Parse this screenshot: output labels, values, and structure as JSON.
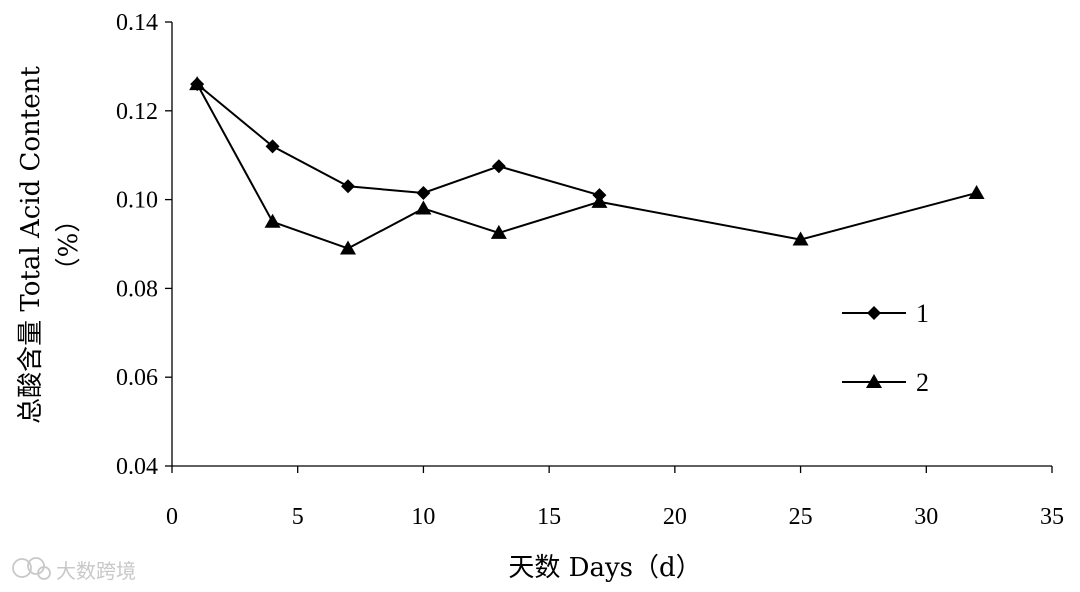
{
  "chart_data": {
    "type": "line",
    "title": "",
    "xlabel": "天数 Days（d）",
    "ylabel": "总酸含量 Total Acid Content",
    "ylabel_unit": "（%）",
    "xlim": [
      0,
      35
    ],
    "ylim": [
      0.04,
      0.14
    ],
    "x_ticks": [
      0,
      5,
      10,
      15,
      20,
      25,
      30,
      35
    ],
    "y_ticks": [
      0.04,
      0.06,
      0.08,
      0.1,
      0.12,
      0.14
    ],
    "y_tick_labels": [
      "0.04",
      "0.06",
      "0.08",
      "0.10",
      "0.12",
      "0.14"
    ],
    "grid": false,
    "legend_position": "right",
    "series": [
      {
        "name": "1",
        "marker": "diamond",
        "x": [
          1,
          4,
          7,
          10,
          13,
          17
        ],
        "y": [
          0.126,
          0.112,
          0.103,
          0.1015,
          0.1075,
          0.101
        ]
      },
      {
        "name": "2",
        "marker": "triangle",
        "x": [
          1,
          4,
          7,
          10,
          13,
          17,
          25,
          32
        ],
        "y": [
          0.126,
          0.095,
          0.089,
          0.098,
          0.0925,
          0.0995,
          0.091,
          0.1015
        ]
      }
    ]
  },
  "watermark": {
    "text": "大数跨境",
    "icon": "chat-bubble-icon"
  },
  "colors": {
    "line": "#000000",
    "axis": "#000000",
    "watermark": "#c8c8c8"
  }
}
